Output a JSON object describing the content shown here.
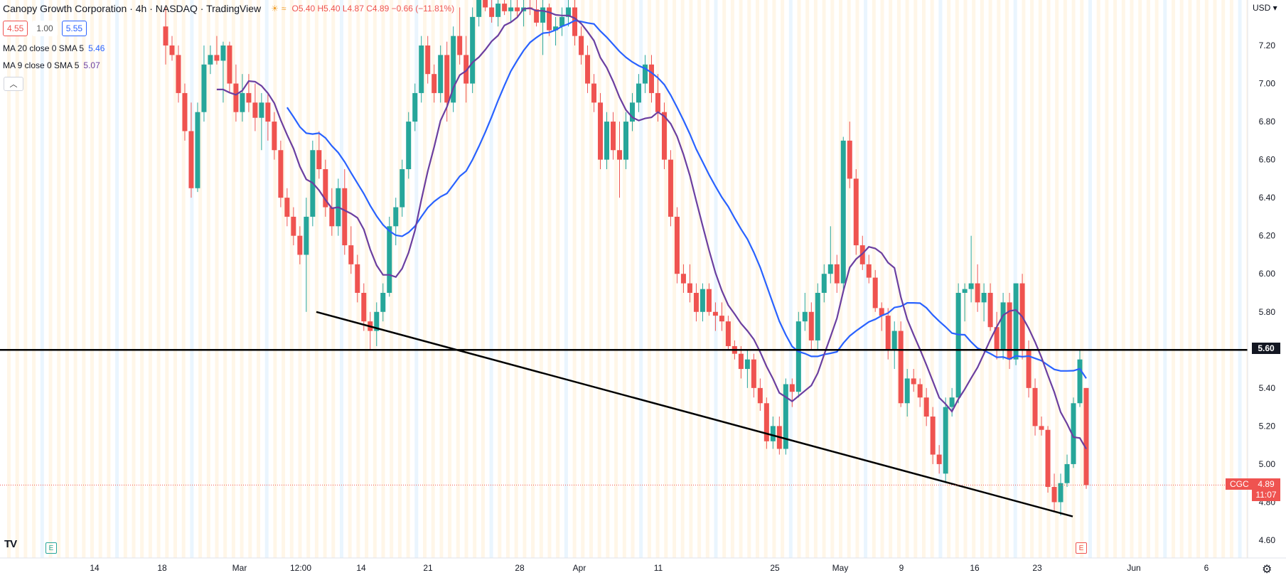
{
  "header": {
    "title": "Canopy Growth Corporation · 4h · NASDAQ · TradingView",
    "ohlc": "O5.40 H5.40 L4.87 C4.89 −0.66 (−11.81%)",
    "icons": [
      "sun-icon",
      "approx-icon"
    ]
  },
  "price_boxes": {
    "sell": "4.55",
    "mid": "1.00",
    "buy": "5.55"
  },
  "indicators": [
    {
      "label": "MA 20 close 0 SMA 5",
      "value": "5.46",
      "color": "#2962ff"
    },
    {
      "label": "MA 9 close 0 SMA 5",
      "value": "5.07",
      "color": "#6b3fa0"
    }
  ],
  "axis": {
    "currency": "USD",
    "x_ticks": [
      "14",
      "18",
      "Mar",
      "12:00",
      "14",
      "21",
      "28",
      "Apr",
      "11",
      "25",
      "May",
      "9",
      "16",
      "23",
      "Jun",
      "6"
    ],
    "y_ticks": [
      "4.60",
      "4.80",
      "5.00",
      "5.20",
      "5.40",
      "5.60",
      "5.80",
      "6.00",
      "6.20",
      "6.40",
      "6.60",
      "6.80",
      "7.00",
      "7.20"
    ]
  },
  "markers": {
    "earnings_left": "E",
    "earnings_right": "E"
  },
  "badges": {
    "level": "5.60",
    "symbol": "CGC",
    "last_price": "4.89",
    "countdown": "11:07"
  },
  "colors": {
    "up": "#26a69a",
    "down": "#ef5350",
    "ma20": "#2962ff",
    "ma9": "#6b3fa0",
    "line": "#000000"
  },
  "chart_data": {
    "type": "candlestick",
    "ylim": [
      4.5,
      7.3
    ],
    "horizontal_level": 5.6,
    "last_price": 4.89,
    "series": [
      {
        "name": "CGC",
        "ohlc": [
          [
            7.3,
            7.4,
            7.1,
            7.2
          ],
          [
            7.2,
            7.25,
            7.12,
            7.15
          ],
          [
            7.15,
            7.2,
            6.9,
            6.95
          ],
          [
            6.95,
            7.0,
            6.7,
            6.75
          ],
          [
            6.75,
            6.9,
            6.4,
            6.45
          ],
          [
            6.45,
            6.9,
            6.43,
            6.85
          ],
          [
            6.85,
            7.2,
            6.8,
            7.1
          ],
          [
            7.1,
            7.2,
            7.05,
            7.15
          ],
          [
            7.15,
            7.25,
            7.1,
            7.12
          ],
          [
            7.12,
            7.22,
            6.9,
            7.2
          ],
          [
            7.2,
            7.22,
            6.95,
            7.0
          ],
          [
            7.0,
            7.1,
            6.8,
            6.85
          ],
          [
            6.85,
            7.05,
            6.8,
            6.95
          ],
          [
            6.95,
            7.05,
            6.85,
            6.9
          ],
          [
            6.9,
            7.0,
            6.75,
            6.82
          ],
          [
            6.82,
            6.95,
            6.65,
            6.9
          ],
          [
            6.9,
            6.95,
            6.7,
            6.8
          ],
          [
            6.8,
            6.85,
            6.6,
            6.65
          ],
          [
            6.65,
            6.7,
            6.35,
            6.4
          ],
          [
            6.4,
            6.45,
            6.25,
            6.3
          ],
          [
            6.3,
            6.35,
            6.15,
            6.2
          ],
          [
            6.2,
            6.25,
            6.05,
            6.1
          ],
          [
            6.1,
            6.4,
            5.8,
            6.3
          ],
          [
            6.3,
            6.7,
            6.25,
            6.65
          ],
          [
            6.65,
            6.75,
            6.5,
            6.55
          ],
          [
            6.55,
            6.6,
            6.3,
            6.35
          ],
          [
            6.35,
            6.45,
            6.2,
            6.25
          ],
          [
            6.25,
            6.5,
            6.2,
            6.45
          ],
          [
            6.45,
            6.55,
            6.1,
            6.15
          ],
          [
            6.15,
            6.25,
            6.0,
            6.05
          ],
          [
            6.05,
            6.1,
            5.85,
            5.9
          ],
          [
            5.9,
            5.95,
            5.7,
            5.75
          ],
          [
            5.75,
            5.8,
            5.6,
            5.7
          ],
          [
            5.7,
            5.85,
            5.62,
            5.8
          ],
          [
            5.8,
            5.95,
            5.75,
            5.9
          ],
          [
            5.9,
            6.3,
            5.88,
            6.25
          ],
          [
            6.25,
            6.4,
            6.15,
            6.35
          ],
          [
            6.35,
            6.6,
            6.3,
            6.55
          ],
          [
            6.55,
            6.85,
            6.5,
            6.8
          ],
          [
            6.8,
            7.0,
            6.75,
            6.95
          ],
          [
            6.95,
            7.25,
            6.9,
            7.2
          ],
          [
            7.2,
            7.25,
            7.0,
            7.05
          ],
          [
            7.05,
            7.1,
            6.9,
            6.95
          ],
          [
            6.95,
            7.2,
            6.9,
            7.15
          ],
          [
            7.15,
            7.22,
            6.8,
            6.9
          ],
          [
            6.9,
            7.3,
            6.85,
            7.25
          ],
          [
            7.25,
            7.4,
            7.1,
            7.15
          ],
          [
            7.15,
            7.25,
            6.9,
            7.0
          ],
          [
            7.0,
            7.4,
            6.95,
            7.35
          ],
          [
            7.35,
            7.5,
            7.3,
            7.45
          ],
          [
            7.45,
            7.5,
            7.38,
            7.4
          ],
          [
            7.4,
            7.48,
            7.32,
            7.35
          ],
          [
            7.35,
            7.45,
            7.3,
            7.42
          ],
          [
            7.42,
            7.48,
            7.36,
            7.38
          ],
          [
            7.38,
            7.45,
            7.32,
            7.4
          ],
          [
            7.4,
            7.45,
            7.35,
            7.38
          ],
          [
            7.38,
            7.45,
            7.3,
            7.4
          ],
          [
            7.4,
            7.45,
            7.36,
            7.39
          ],
          [
            7.39,
            7.44,
            7.3,
            7.32
          ],
          [
            7.32,
            7.45,
            7.15,
            7.4
          ],
          [
            7.4,
            7.42,
            7.25,
            7.28
          ],
          [
            7.28,
            7.35,
            7.2,
            7.3
          ],
          [
            7.3,
            7.4,
            7.25,
            7.35
          ],
          [
            7.35,
            7.45,
            7.3,
            7.4
          ],
          [
            7.4,
            7.45,
            7.2,
            7.25
          ],
          [
            7.25,
            7.3,
            7.1,
            7.15
          ],
          [
            7.15,
            7.2,
            6.95,
            7.0
          ],
          [
            7.0,
            7.05,
            6.85,
            6.9
          ],
          [
            6.9,
            6.95,
            6.55,
            6.6
          ],
          [
            6.6,
            6.85,
            6.55,
            6.8
          ],
          [
            6.8,
            6.85,
            6.6,
            6.65
          ],
          [
            6.65,
            6.8,
            6.4,
            6.6
          ],
          [
            6.6,
            6.85,
            6.55,
            6.8
          ],
          [
            6.8,
            6.95,
            6.75,
            6.9
          ],
          [
            6.9,
            7.05,
            6.85,
            7.0
          ],
          [
            7.0,
            7.15,
            6.95,
            7.1
          ],
          [
            7.1,
            7.15,
            6.9,
            6.95
          ],
          [
            6.95,
            7.05,
            6.8,
            6.85
          ],
          [
            6.85,
            6.9,
            6.55,
            6.6
          ],
          [
            6.6,
            6.65,
            6.25,
            6.3
          ],
          [
            6.3,
            6.35,
            5.95,
            6.0
          ],
          [
            6.0,
            6.05,
            5.9,
            5.95
          ],
          [
            5.95,
            6.05,
            5.85,
            5.9
          ],
          [
            5.9,
            5.95,
            5.75,
            5.8
          ],
          [
            5.8,
            5.95,
            5.75,
            5.92
          ],
          [
            5.92,
            5.95,
            5.78,
            5.8
          ],
          [
            5.8,
            5.85,
            5.7,
            5.78
          ],
          [
            5.78,
            5.85,
            5.7,
            5.75
          ],
          [
            5.75,
            5.78,
            5.6,
            5.62
          ],
          [
            5.62,
            5.65,
            5.55,
            5.58
          ],
          [
            5.58,
            5.62,
            5.45,
            5.5
          ],
          [
            5.5,
            5.6,
            5.4,
            5.55
          ],
          [
            5.55,
            5.58,
            5.35,
            5.4
          ],
          [
            5.4,
            5.45,
            5.28,
            5.32
          ],
          [
            5.32,
            5.35,
            5.08,
            5.12
          ],
          [
            5.12,
            5.25,
            5.08,
            5.2
          ],
          [
            5.2,
            5.25,
            5.05,
            5.08
          ],
          [
            5.08,
            5.45,
            5.05,
            5.42
          ],
          [
            5.42,
            5.45,
            5.3,
            5.38
          ],
          [
            5.38,
            5.8,
            5.35,
            5.75
          ],
          [
            5.75,
            5.9,
            5.7,
            5.8
          ],
          [
            5.8,
            5.85,
            5.6,
            5.65
          ],
          [
            5.65,
            5.95,
            5.6,
            5.9
          ],
          [
            5.9,
            6.05,
            5.85,
            6.0
          ],
          [
            6.0,
            6.25,
            5.95,
            6.05
          ],
          [
            6.05,
            6.1,
            5.9,
            5.95
          ],
          [
            5.95,
            6.72,
            5.9,
            6.7
          ],
          [
            6.7,
            6.8,
            6.45,
            6.5
          ],
          [
            6.5,
            6.55,
            6.1,
            6.15
          ],
          [
            6.15,
            6.2,
            6.02,
            6.05
          ],
          [
            6.05,
            6.1,
            5.95,
            5.98
          ],
          [
            5.98,
            6.02,
            5.8,
            5.82
          ],
          [
            5.82,
            5.85,
            5.7,
            5.78
          ],
          [
            5.78,
            5.82,
            5.55,
            5.6
          ],
          [
            5.6,
            5.75,
            5.5,
            5.7
          ],
          [
            5.7,
            5.75,
            5.3,
            5.32
          ],
          [
            5.32,
            5.5,
            5.25,
            5.45
          ],
          [
            5.45,
            5.5,
            5.38,
            5.42
          ],
          [
            5.42,
            5.45,
            5.3,
            5.35
          ],
          [
            5.35,
            5.4,
            5.2,
            5.25
          ],
          [
            5.25,
            5.3,
            5.0,
            5.05
          ],
          [
            5.05,
            5.1,
            4.95,
            5.0
          ],
          [
            4.95,
            5.35,
            4.9,
            5.3
          ],
          [
            5.3,
            5.4,
            5.25,
            5.35
          ],
          [
            5.35,
            5.95,
            5.32,
            5.9
          ],
          [
            5.9,
            5.95,
            5.75,
            5.92
          ],
          [
            5.92,
            6.2,
            5.85,
            5.95
          ],
          [
            5.95,
            6.05,
            5.8,
            5.85
          ],
          [
            5.85,
            5.95,
            5.75,
            5.9
          ],
          [
            5.9,
            5.95,
            5.7,
            5.72
          ],
          [
            5.72,
            5.8,
            5.55,
            5.6
          ],
          [
            5.6,
            5.9,
            5.55,
            5.85
          ],
          [
            5.85,
            5.9,
            5.5,
            5.55
          ],
          [
            5.55,
            5.95,
            5.52,
            5.95
          ],
          [
            5.95,
            6.0,
            5.55,
            5.6
          ],
          [
            5.6,
            5.65,
            5.35,
            5.4
          ],
          [
            5.4,
            5.45,
            5.15,
            5.2
          ],
          [
            5.2,
            5.25,
            5.15,
            5.18
          ],
          [
            5.18,
            5.2,
            4.85,
            4.88
          ],
          [
            4.88,
            4.95,
            4.75,
            4.8
          ],
          [
            4.8,
            4.95,
            4.73,
            4.9
          ],
          [
            4.9,
            5.05,
            4.88,
            5.0
          ],
          [
            5.0,
            5.35,
            4.98,
            5.32
          ],
          [
            5.32,
            5.6,
            5.3,
            5.55
          ],
          [
            5.4,
            5.4,
            4.87,
            4.89
          ]
        ]
      }
    ]
  }
}
